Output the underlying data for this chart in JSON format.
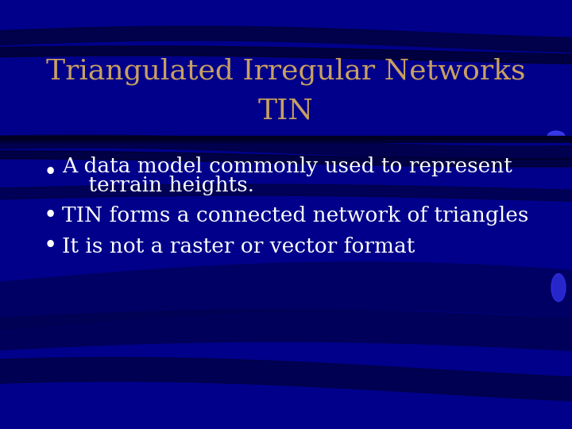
{
  "title_line1": "Triangulated Irregular Networks",
  "title_line2": "TIN",
  "title_color": "#C8A060",
  "bullet_color": "#FFFFFF",
  "bullet_line1a": "A data model commonly used to represent",
  "bullet_line1b": "    terrain heights.",
  "bullet_line2": "TIN forms a connected network of triangles",
  "bullet_line3": "It is not a raster or vector format",
  "bg_color": "#00008B",
  "title_fontsize": 26,
  "bullet_fontsize": 19,
  "figsize": [
    7.2,
    5.4
  ],
  "dpi": 100
}
